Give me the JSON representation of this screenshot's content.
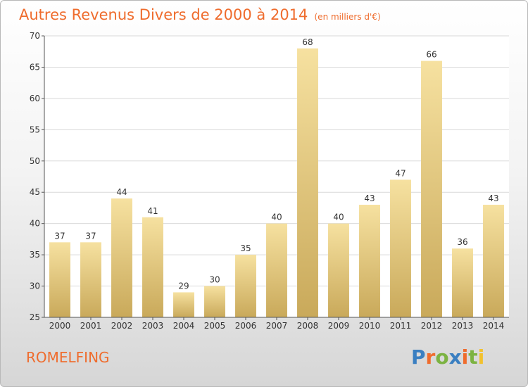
{
  "header": {
    "title": "Autres Revenus Divers de 2000 à 2014",
    "subtitle": "(en milliers d'€)"
  },
  "footer": {
    "commune": "ROMELFING",
    "logo_text": "Proxiti"
  },
  "colors": {
    "title": "#ef6c2d",
    "bar_light": "#f6e1a0",
    "bar_dark": "#c9a95a",
    "grid": "#d9d9d9",
    "logo": [
      "#3a7fc1",
      "#ef6c2d",
      "#7cb342",
      "#3a7fc1",
      "#ef6c2d",
      "#7cb342",
      "#f2c12e"
    ]
  },
  "chart_data": {
    "type": "bar",
    "categories": [
      "2000",
      "2001",
      "2002",
      "2003",
      "2004",
      "2005",
      "2006",
      "2007",
      "2008",
      "2009",
      "2010",
      "2011",
      "2012",
      "2013",
      "2014"
    ],
    "values": [
      37,
      37,
      44,
      41,
      29,
      30,
      35,
      40,
      68,
      40,
      43,
      47,
      66,
      36,
      43
    ],
    "data_labels": [
      "37",
      "37",
      "44",
      "41",
      "29",
      "30",
      "35",
      "40",
      "68",
      "40",
      "43",
      "47",
      "66",
      "36",
      "43"
    ],
    "ylim": [
      25,
      70
    ],
    "yticks": [
      25,
      30,
      35,
      40,
      45,
      50,
      55,
      60,
      65,
      70
    ],
    "grid": true,
    "legend": "none"
  }
}
